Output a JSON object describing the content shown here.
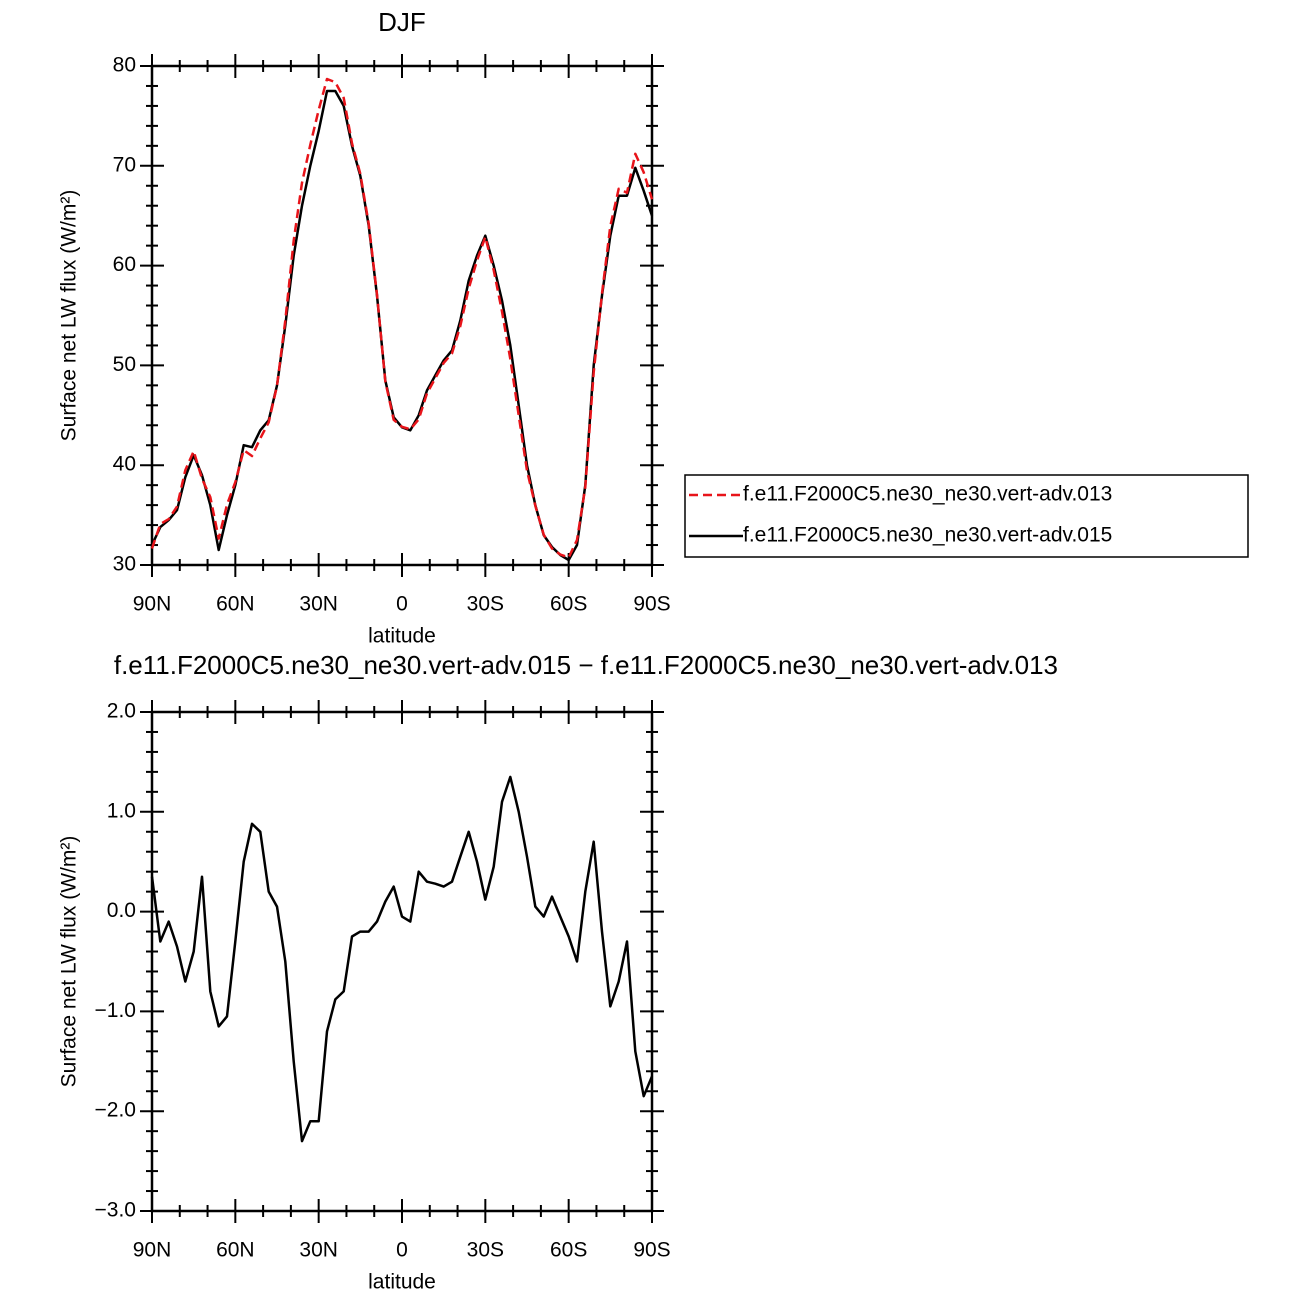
{
  "chart_data": [
    {
      "type": "line",
      "title": "DJF",
      "x": [
        90,
        87,
        84,
        81,
        78,
        75,
        72,
        69,
        66,
        63,
        60,
        57,
        54,
        51,
        48,
        45,
        42,
        39,
        36,
        33,
        30,
        27,
        24,
        21,
        18,
        15,
        12,
        9,
        6,
        3,
        0,
        -3,
        -6,
        -9,
        -12,
        -15,
        -18,
        -21,
        -24,
        -27,
        -30,
        -33,
        -36,
        -39,
        -42,
        -45,
        -48,
        -51,
        -54,
        -57,
        -60,
        -63,
        -66,
        -69,
        -72,
        -75,
        -78,
        -81,
        -84,
        -87,
        -90
      ],
      "series": [
        {
          "name": "f.e11.F2000C5.ne30_ne30.vert-adv.013",
          "color": "#e8141a",
          "style": "dashed",
          "values": [
            31.65,
            34.1,
            34.6,
            35.85,
            39.5,
            41.4,
            38.65,
            36.8,
            32.65,
            36.05,
            38.3,
            41.5,
            40.92,
            42.7,
            44.3,
            47.95,
            54.5,
            62.5,
            68.3,
            72.1,
            75.6,
            78.7,
            78.38,
            76.8,
            72.25,
            69.2,
            64.2,
            57.1,
            48.4,
            44.55,
            43.85,
            43.6,
            44.6,
            47.2,
            48.72,
            50.25,
            51.2,
            53.95,
            57.7,
            60.5,
            62.88,
            59.55,
            55.4,
            50.65,
            45,
            39.45,
            35.95,
            33.05,
            31.65,
            31.05,
            30.75,
            32.5,
            37.8,
            49.3,
            57.2,
            63.95,
            67.7,
            67.3,
            71.2,
            69.35,
            66.65
          ]
        },
        {
          "name": "f.e11.F2000C5.ne30_ne30.vert-adv.015",
          "color": "#000000",
          "style": "solid",
          "values": [
            32,
            33.8,
            34.5,
            35.5,
            38.8,
            41,
            39,
            36,
            31.5,
            35,
            38,
            42,
            41.8,
            43.5,
            44.5,
            48,
            54,
            61,
            66,
            70,
            73.5,
            77.5,
            77.5,
            76,
            72,
            69,
            64,
            57,
            48.5,
            44.8,
            43.8,
            43.5,
            45,
            47.5,
            49,
            50.5,
            51.5,
            54.5,
            58.5,
            61,
            63,
            60,
            56.5,
            52,
            46,
            40,
            36,
            33,
            31.8,
            31,
            30.5,
            32,
            38,
            50,
            57,
            63,
            67,
            67,
            69.8,
            67.5,
            65
          ]
        }
      ],
      "xlim": [
        90,
        -90
      ],
      "xticks": [
        {
          "value": 90,
          "label": "90N"
        },
        {
          "value": 60,
          "label": "60N"
        },
        {
          "value": 30,
          "label": "30N"
        },
        0,
        {
          "value": -30,
          "label": "30S"
        },
        {
          "value": -60,
          "label": "60S"
        },
        {
          "value": -90,
          "label": "90S"
        }
      ],
      "xminorticks": [
        80,
        70,
        50,
        40,
        20,
        10,
        -10,
        -20,
        -40,
        -50,
        -70,
        -80
      ],
      "ylim": [
        30,
        80
      ],
      "yticks": [
        30,
        40,
        50,
        60,
        70,
        80
      ],
      "yminorticks": [
        32,
        34,
        36,
        38,
        42,
        44,
        46,
        48,
        52,
        54,
        56,
        58,
        62,
        64,
        66,
        68,
        72,
        74,
        76,
        78
      ],
      "xlabel": "latitude",
      "ylabel": "Surface net LW flux (W/m²)",
      "legend": "right"
    },
    {
      "type": "line",
      "title": "f.e11.F2000C5.ne30_ne30.vert-adv.015 − f.e11.F2000C5.ne30_ne30.vert-adv.013",
      "x": [
        90,
        87,
        84,
        81,
        78,
        75,
        72,
        69,
        66,
        63,
        60,
        57,
        54,
        51,
        48,
        45,
        42,
        39,
        36,
        33,
        30,
        27,
        24,
        21,
        18,
        15,
        12,
        9,
        6,
        3,
        0,
        -3,
        -6,
        -9,
        -12,
        -15,
        -18,
        -21,
        -24,
        -27,
        -30,
        -33,
        -36,
        -39,
        -42,
        -45,
        -48,
        -51,
        -54,
        -57,
        -60,
        -63,
        -66,
        -69,
        -72,
        -75,
        -78,
        -81,
        -84,
        -87,
        -90
      ],
      "color": "#000000",
      "values": [
        0.35,
        -0.3,
        -0.1,
        -0.35,
        -0.7,
        -0.4,
        0.35,
        -0.8,
        -1.15,
        -1.05,
        -0.3,
        0.5,
        0.88,
        0.8,
        0.2,
        0.05,
        -0.5,
        -1.5,
        -2.3,
        -2.1,
        -2.1,
        -1.2,
        -0.88,
        -0.8,
        -0.25,
        -0.2,
        -0.2,
        -0.1,
        0.1,
        0.25,
        -0.05,
        -0.1,
        0.4,
        0.3,
        0.28,
        0.25,
        0.3,
        0.55,
        0.8,
        0.5,
        0.12,
        0.45,
        1.1,
        1.35,
        1.0,
        0.55,
        0.05,
        -0.05,
        0.15,
        -0.05,
        -0.25,
        -0.5,
        0.2,
        0.7,
        -0.2,
        -0.95,
        -0.7,
        -0.3,
        -1.4,
        -1.85,
        -1.65
      ],
      "xlim": [
        90,
        -90
      ],
      "xticks": [
        {
          "value": 90,
          "label": "90N"
        },
        {
          "value": 60,
          "label": "60N"
        },
        {
          "value": 30,
          "label": "30N"
        },
        0,
        {
          "value": -30,
          "label": "30S"
        },
        {
          "value": -60,
          "label": "60S"
        },
        {
          "value": -90,
          "label": "90S"
        }
      ],
      "xminorticks": [
        80,
        70,
        50,
        40,
        20,
        10,
        -10,
        -20,
        -40,
        -50,
        -70,
        -80
      ],
      "ylim": [
        -3,
        2
      ],
      "yticks": [
        {
          "value": -3,
          "label": "−3.0"
        },
        {
          "value": -2,
          "label": "−2.0"
        },
        {
          "value": -1,
          "label": "−1.0"
        },
        {
          "value": 0,
          "label": "0.0"
        },
        {
          "value": 1,
          "label": "1.0"
        },
        {
          "value": 2,
          "label": "2.0"
        }
      ],
      "yminorticks": [
        -2.8,
        -2.6,
        -2.4,
        -2.2,
        -1.8,
        -1.6,
        -1.4,
        -1.2,
        -0.8,
        -0.6,
        -0.4,
        -0.2,
        0.2,
        0.4,
        0.6,
        0.8,
        1.2,
        1.4,
        1.6,
        1.8
      ],
      "xlabel": "latitude",
      "ylabel": "Surface net LW flux (W/m²)"
    }
  ]
}
